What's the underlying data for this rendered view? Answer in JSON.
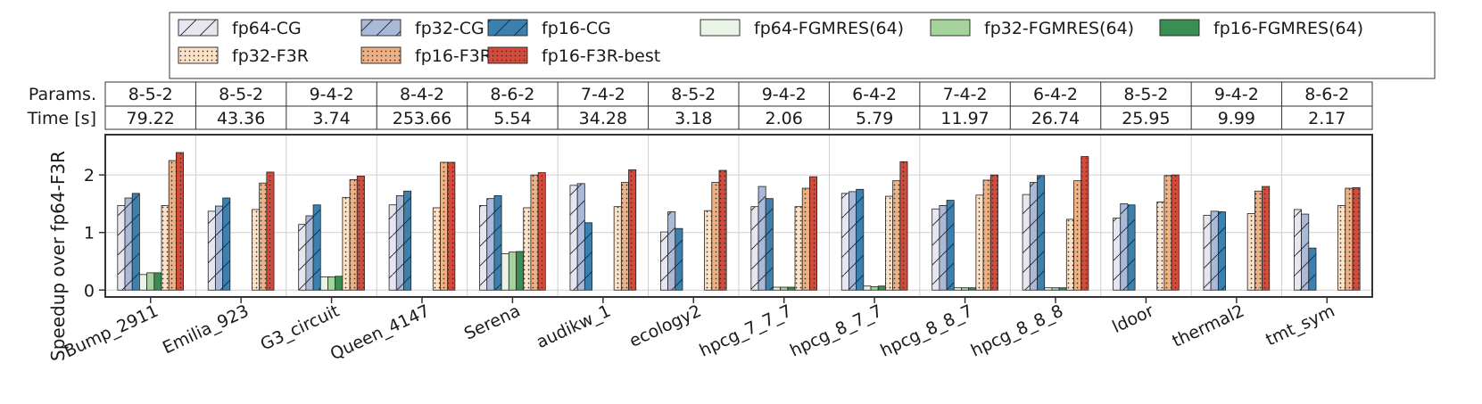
{
  "chart_data": {
    "type": "bar",
    "ylabel": "Speedup over fp64-F3R",
    "ylim": [
      -0.12,
      2.7
    ],
    "yticks": [
      0,
      1,
      2
    ],
    "grid": true,
    "legend_position": "top-center",
    "table": {
      "row_labels": [
        "Params.",
        "Time [s]"
      ],
      "params": [
        "8-5-2",
        "8-5-2",
        "9-4-2",
        "8-4-2",
        "8-6-2",
        "7-4-2",
        "8-5-2",
        "9-4-2",
        "6-4-2",
        "7-4-2",
        "6-4-2",
        "8-5-2",
        "9-4-2",
        "8-6-2"
      ],
      "time": [
        "79.22",
        "43.36",
        "3.74",
        "253.66",
        "5.54",
        "34.28",
        "3.18",
        "2.06",
        "5.79",
        "11.97",
        "26.74",
        "25.95",
        "9.99",
        "2.17"
      ]
    },
    "categories": [
      "Bump_2911",
      "Emilia_923",
      "G3_circuit",
      "Queen_4147",
      "Serena",
      "audikw_1",
      "ecology2",
      "hpcg_7_7_7",
      "hpcg_8_7_7",
      "hpcg_8_8_7",
      "hpcg_8_8_8",
      "ldoor",
      "thermal2",
      "tmt_sym"
    ],
    "series": [
      {
        "name": "fp64-CG",
        "color": "#e6e6f1",
        "hatch": "diag",
        "values": [
          1.47,
          1.37,
          1.14,
          1.48,
          1.47,
          1.82,
          1.01,
          1.45,
          1.68,
          1.41,
          1.66,
          1.25,
          1.3,
          1.4
        ]
      },
      {
        "name": "fp32-CG",
        "color": "#a9b9d8",
        "hatch": "diag",
        "values": [
          1.6,
          1.46,
          1.29,
          1.64,
          1.59,
          1.85,
          1.36,
          1.8,
          1.71,
          1.47,
          1.87,
          1.5,
          1.37,
          1.32
        ]
      },
      {
        "name": "fp16-CG",
        "color": "#3b80ae",
        "hatch": "diag",
        "values": [
          1.68,
          1.6,
          1.48,
          1.72,
          1.64,
          1.17,
          1.07,
          1.59,
          1.75,
          1.56,
          1.99,
          1.48,
          1.36,
          0.73
        ]
      },
      {
        "name": "fp64-FGMRES(64)",
        "color": "#e8f4e4",
        "hatch": "none",
        "values": [
          0.27,
          0,
          0.23,
          0,
          0.63,
          0,
          0,
          0.05,
          0.07,
          0.04,
          0.04,
          0,
          0,
          0
        ]
      },
      {
        "name": "fp32-FGMRES(64)",
        "color": "#a5d39c",
        "hatch": "none",
        "values": [
          0.3,
          0,
          0.23,
          0,
          0.66,
          0,
          0,
          0.05,
          0.06,
          0.04,
          0.04,
          0,
          0,
          0
        ]
      },
      {
        "name": "fp16-FGMRES(64)",
        "color": "#3a8e53",
        "hatch": "none",
        "values": [
          0.3,
          0,
          0.24,
          0,
          0.67,
          0,
          0,
          0.05,
          0.07,
          0.04,
          0.04,
          0,
          0,
          0
        ]
      },
      {
        "name": "fp32-F3R",
        "color": "#fbe1c5",
        "hatch": "dots",
        "values": [
          1.47,
          1.4,
          1.61,
          1.43,
          1.43,
          1.45,
          1.38,
          1.45,
          1.63,
          1.65,
          1.23,
          1.53,
          1.33,
          1.47
        ]
      },
      {
        "name": "fp16-F3R",
        "color": "#eeb185",
        "hatch": "dots",
        "values": [
          2.25,
          1.86,
          1.92,
          2.22,
          2.0,
          1.87,
          1.87,
          1.77,
          1.9,
          1.91,
          1.9,
          1.99,
          1.72,
          1.77
        ]
      },
      {
        "name": "fp16-F3R-best",
        "color": "#d44b3c",
        "hatch": "dots",
        "values": [
          2.39,
          2.05,
          1.98,
          2.22,
          2.04,
          2.09,
          2.08,
          1.97,
          2.23,
          2.0,
          2.32,
          2.0,
          1.8,
          1.78
        ]
      }
    ],
    "legend_order": [
      "fp64-CG",
      "fp32-CG",
      "fp16-CG",
      "fp64-FGMRES(64)",
      "fp32-FGMRES(64)",
      "fp16-FGMRES(64)",
      "fp32-F3R",
      "fp16-F3R",
      "fp16-F3R-best"
    ]
  }
}
